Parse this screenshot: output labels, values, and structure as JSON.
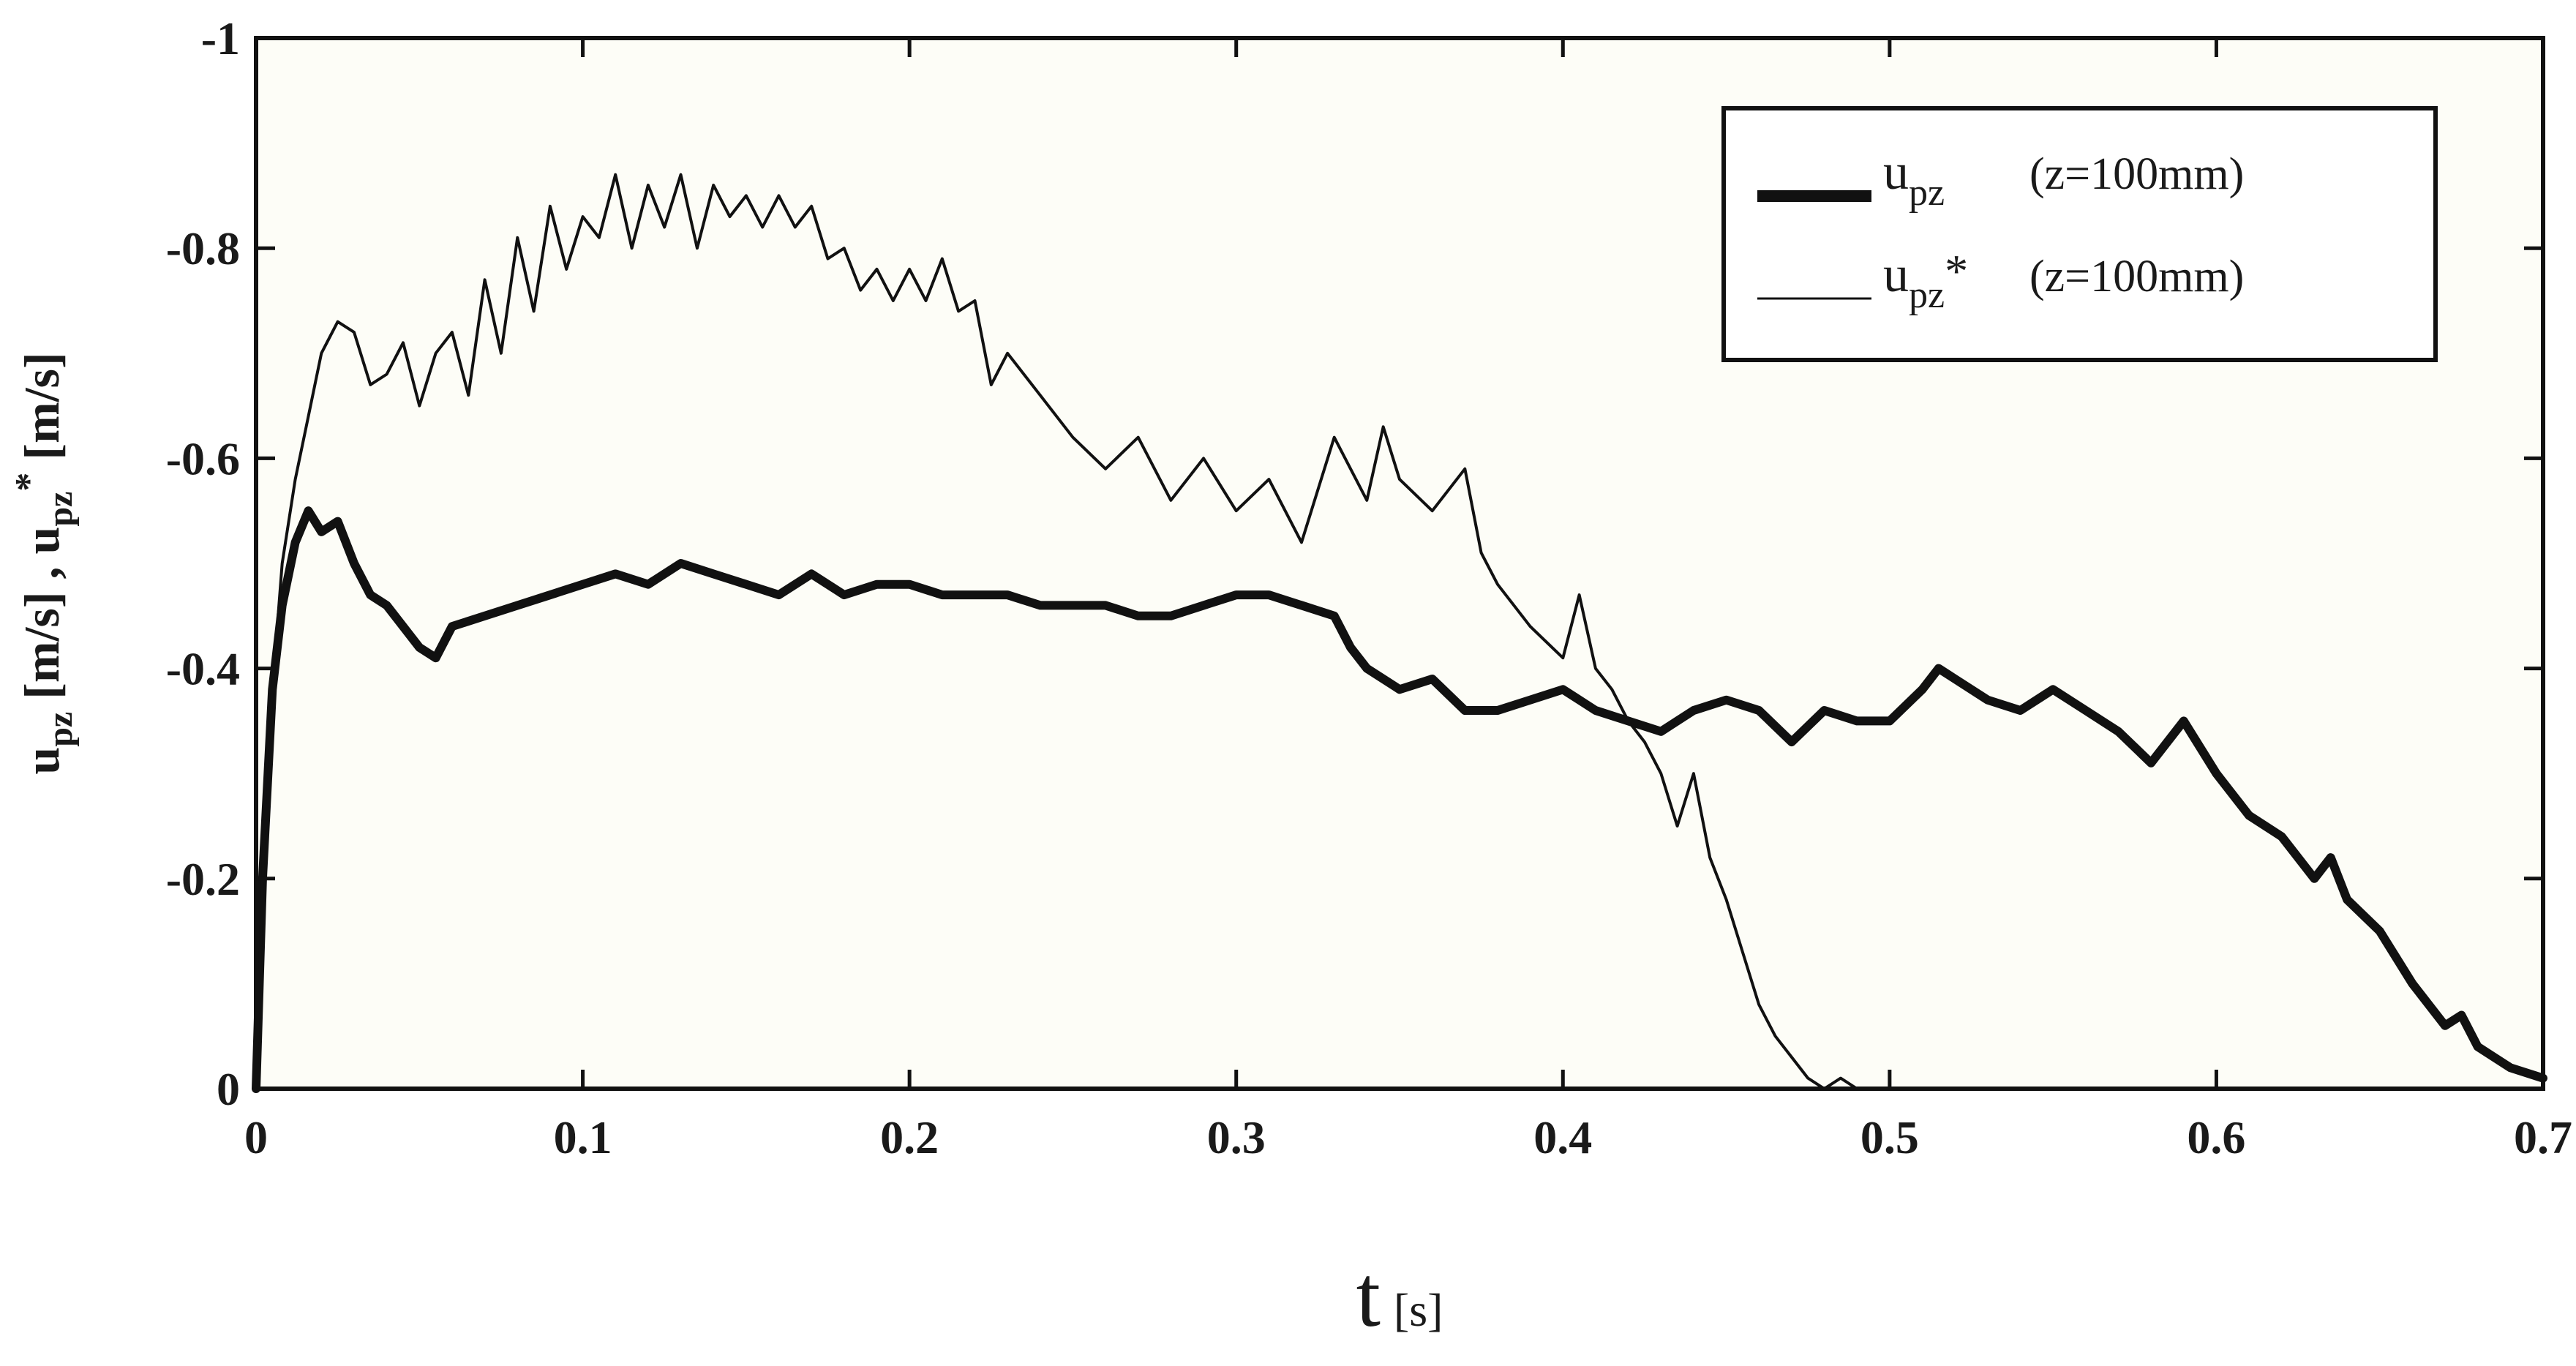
{
  "chart_data": {
    "type": "line",
    "title": "",
    "xlabel": {
      "symbol": "t",
      "unit": "[s]"
    },
    "ylabel": {
      "part1_base": "u",
      "part1_sub": "pz",
      "part1_unit": " [m/s] , ",
      "part2_base": "u",
      "part2_sub": "pz",
      "part2_sup": "*",
      "part2_unit": " [m/s]"
    },
    "xlim": [
      0,
      0.7
    ],
    "ylim": [
      0,
      -1
    ],
    "y_axis_inverted": true,
    "xticks": [
      "0",
      "0.1",
      "0.2",
      "0.3",
      "0.4",
      "0.5",
      "0.6",
      "0.7"
    ],
    "yticks": [
      "-1",
      "-0.8",
      "-0.6",
      "-0.4",
      "-0.2",
      "0"
    ],
    "xtick_values": [
      0,
      0.1,
      0.2,
      0.3,
      0.4,
      0.5,
      0.6,
      0.7
    ],
    "ytick_values": [
      -1,
      -0.8,
      -0.6,
      -0.4,
      -0.2,
      0
    ],
    "grid": false,
    "legend_position": "top-right",
    "background_color": "#fdfdf7",
    "line_color": "#111111",
    "series": [
      {
        "name": "u_pz (z=100mm)",
        "legend": {
          "base": "u",
          "sub": "pz",
          "sup": "",
          "note": "(z=100mm)"
        },
        "style": "thick",
        "x": [
          0,
          0.002,
          0.005,
          0.008,
          0.012,
          0.016,
          0.02,
          0.025,
          0.03,
          0.035,
          0.04,
          0.05,
          0.055,
          0.06,
          0.07,
          0.08,
          0.09,
          0.1,
          0.11,
          0.12,
          0.13,
          0.14,
          0.15,
          0.16,
          0.17,
          0.18,
          0.19,
          0.2,
          0.21,
          0.22,
          0.23,
          0.24,
          0.25,
          0.26,
          0.27,
          0.28,
          0.29,
          0.3,
          0.31,
          0.32,
          0.33,
          0.335,
          0.34,
          0.35,
          0.36,
          0.37,
          0.38,
          0.39,
          0.4,
          0.41,
          0.42,
          0.43,
          0.44,
          0.45,
          0.46,
          0.47,
          0.48,
          0.49,
          0.5,
          0.51,
          0.515,
          0.52,
          0.53,
          0.54,
          0.55,
          0.56,
          0.57,
          0.58,
          0.59,
          0.6,
          0.61,
          0.62,
          0.63,
          0.635,
          0.64,
          0.65,
          0.66,
          0.67,
          0.675,
          0.68,
          0.69,
          0.7
        ],
        "y": [
          0,
          -0.2,
          -0.38,
          -0.46,
          -0.52,
          -0.55,
          -0.53,
          -0.54,
          -0.5,
          -0.47,
          -0.46,
          -0.42,
          -0.41,
          -0.44,
          -0.45,
          -0.46,
          -0.47,
          -0.48,
          -0.49,
          -0.48,
          -0.5,
          -0.49,
          -0.48,
          -0.47,
          -0.49,
          -0.47,
          -0.48,
          -0.48,
          -0.47,
          -0.47,
          -0.47,
          -0.46,
          -0.46,
          -0.46,
          -0.45,
          -0.45,
          -0.46,
          -0.47,
          -0.47,
          -0.46,
          -0.45,
          -0.42,
          -0.4,
          -0.38,
          -0.39,
          -0.36,
          -0.36,
          -0.37,
          -0.38,
          -0.36,
          -0.35,
          -0.34,
          -0.36,
          -0.37,
          -0.36,
          -0.33,
          -0.36,
          -0.35,
          -0.35,
          -0.38,
          -0.4,
          -0.39,
          -0.37,
          -0.36,
          -0.38,
          -0.36,
          -0.34,
          -0.31,
          -0.35,
          -0.3,
          -0.26,
          -0.24,
          -0.2,
          -0.22,
          -0.18,
          -0.15,
          -0.1,
          -0.06,
          -0.07,
          -0.04,
          -0.02,
          -0.01
        ]
      },
      {
        "name": "u_pz* (z=100mm)",
        "legend": {
          "base": "u",
          "sub": "pz",
          "sup": "*",
          "note": "(z=100mm)"
        },
        "style": "thin",
        "x": [
          0,
          0.003,
          0.008,
          0.012,
          0.016,
          0.02,
          0.025,
          0.03,
          0.035,
          0.04,
          0.045,
          0.05,
          0.055,
          0.06,
          0.065,
          0.07,
          0.075,
          0.08,
          0.085,
          0.09,
          0.095,
          0.1,
          0.105,
          0.11,
          0.115,
          0.12,
          0.125,
          0.13,
          0.135,
          0.14,
          0.145,
          0.15,
          0.155,
          0.16,
          0.165,
          0.17,
          0.175,
          0.18,
          0.185,
          0.19,
          0.195,
          0.2,
          0.205,
          0.21,
          0.215,
          0.22,
          0.225,
          0.23,
          0.24,
          0.25,
          0.26,
          0.27,
          0.28,
          0.29,
          0.3,
          0.31,
          0.32,
          0.33,
          0.34,
          0.345,
          0.35,
          0.36,
          0.37,
          0.375,
          0.38,
          0.39,
          0.4,
          0.405,
          0.41,
          0.415,
          0.42,
          0.425,
          0.43,
          0.435,
          0.44,
          0.445,
          0.45,
          0.455,
          0.46,
          0.465,
          0.47,
          0.475,
          0.48,
          0.485,
          0.49
        ],
        "y": [
          0,
          -0.3,
          -0.5,
          -0.58,
          -0.64,
          -0.7,
          -0.73,
          -0.72,
          -0.67,
          -0.68,
          -0.71,
          -0.65,
          -0.7,
          -0.72,
          -0.66,
          -0.77,
          -0.7,
          -0.81,
          -0.74,
          -0.84,
          -0.78,
          -0.83,
          -0.81,
          -0.87,
          -0.8,
          -0.86,
          -0.82,
          -0.87,
          -0.8,
          -0.86,
          -0.83,
          -0.85,
          -0.82,
          -0.85,
          -0.82,
          -0.84,
          -0.79,
          -0.8,
          -0.76,
          -0.78,
          -0.75,
          -0.78,
          -0.75,
          -0.79,
          -0.74,
          -0.75,
          -0.67,
          -0.7,
          -0.66,
          -0.62,
          -0.59,
          -0.62,
          -0.56,
          -0.6,
          -0.55,
          -0.58,
          -0.52,
          -0.62,
          -0.56,
          -0.63,
          -0.58,
          -0.55,
          -0.59,
          -0.51,
          -0.48,
          -0.44,
          -0.41,
          -0.47,
          -0.4,
          -0.38,
          -0.35,
          -0.33,
          -0.3,
          -0.25,
          -0.3,
          -0.22,
          -0.18,
          -0.13,
          -0.08,
          -0.05,
          -0.03,
          -0.01,
          0,
          -0.01,
          0
        ]
      }
    ]
  }
}
